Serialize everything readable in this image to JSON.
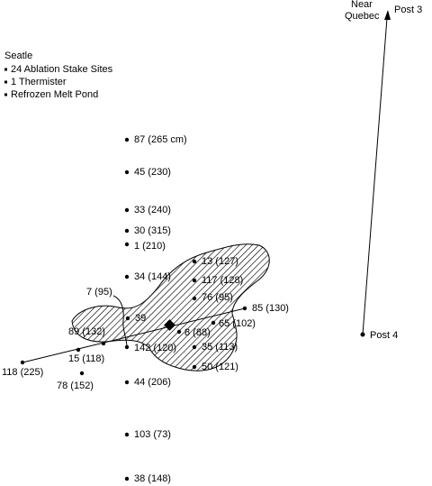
{
  "legend": {
    "title": "Seatle",
    "items": [
      "24 Ablation Stake Sites",
      "1 Thermister",
      "Refrozen Melt Pond"
    ]
  },
  "stakes": [
    "87 (265 cm)",
    "45 (230)",
    "33 (240)",
    "30 (315)",
    "1 (210)",
    "34 (144)",
    "13 (127)",
    "117 (128)",
    "76 (95)",
    "85 (130)",
    "65 (102)",
    "8 (88)",
    "35 (113)",
    "50 (121)",
    "39",
    "7 (95)",
    "89 (132)",
    "142 (120)",
    "15 (118)",
    "118 (225)",
    "78 (152)",
    "44 (206)",
    "103 (73)",
    "38 (148)"
  ],
  "posts": {
    "post_4": "Post 4",
    "post_3": "Post 3",
    "near_line1": "Near",
    "near_line2": "Quebec"
  }
}
